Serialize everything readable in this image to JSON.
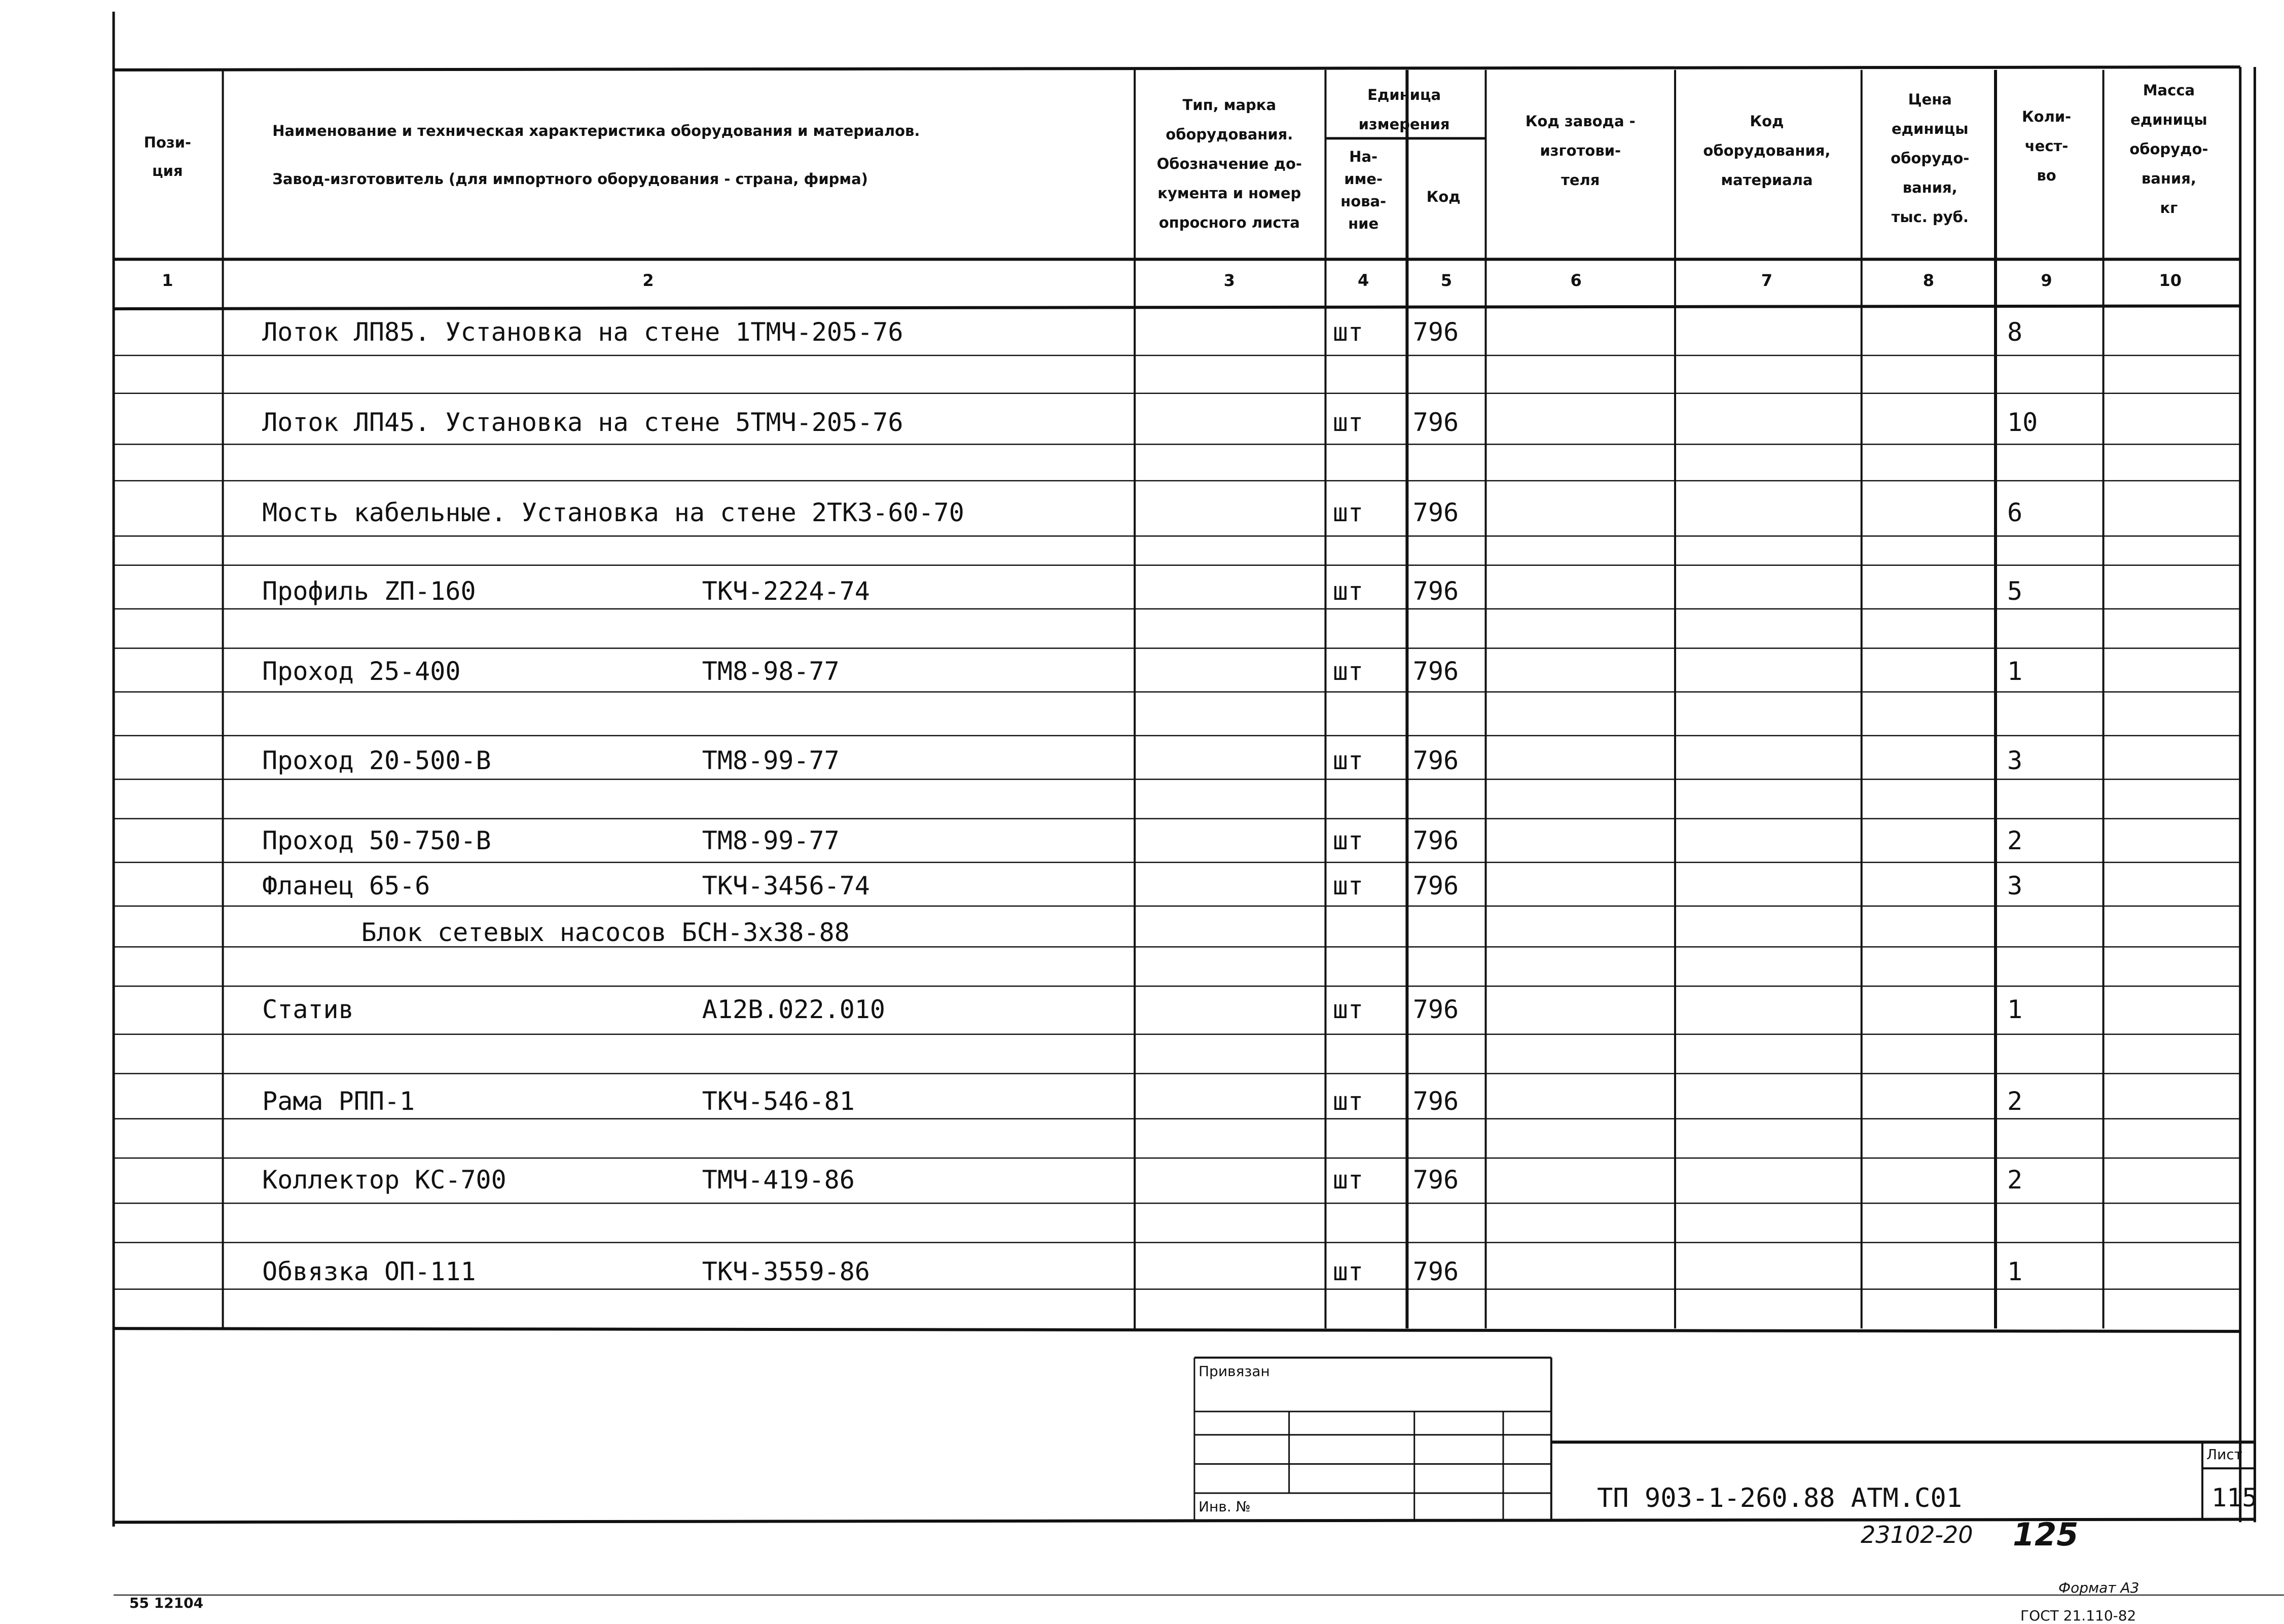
{
  "header": {
    "col1": "Пози-\nция",
    "col2_line1": "Наименование и техническая характеристика оборудования и материалов.",
    "col2_line2": "Завод-изготовитель (для импортного оборудования - страна, фирма)",
    "col3": "Тип, марка\nоборудования.\nОбозначение до-\nкумента и номер\nопросного листа",
    "unit_group": "Единица\nизмерения",
    "col4": "На-\nиме-\nнова-\nние",
    "col5": "Код",
    "col6": "Код завода -\nизготови-\nтеля",
    "col7": "Код\nоборудования,\nматериала",
    "col8": "Цена\nединицы\nоборудо-\nвания,\nтыс. руб.",
    "col9": "Коли-\nчест-\nво",
    "col10": "Масса\nединицы\nоборудо-\nвания,\nкг",
    "numbers": [
      "1",
      "2",
      "3",
      "4",
      "5",
      "6",
      "7",
      "8",
      "9",
      "10"
    ]
  },
  "rows": [
    {
      "name": "Лоток ЛП85. Установка на стене 1ТМЧ-205-76",
      "doc": "",
      "unit": "шт",
      "code": "796",
      "qty": "8"
    },
    {
      "name": "Лоток ЛП45. Установка на стене 5ТМЧ-205-76",
      "doc": "",
      "unit": "шт",
      "code": "796",
      "qty": "10"
    },
    {
      "name": "Мость кабельные. Установка на стене 2ТК3-60-70",
      "doc": "",
      "unit": "шт",
      "code": "796",
      "qty": "6"
    },
    {
      "name": "Профиль  ZП-160",
      "doc": "ТКЧ-2224-74",
      "unit": "шт",
      "code": "796",
      "qty": "5"
    },
    {
      "name": "Проход 25-400",
      "doc": "ТМ8-98-77",
      "unit": "шт",
      "code": "796",
      "qty": "1"
    },
    {
      "name": "Проход 20-500-В",
      "doc": "ТМ8-99-77",
      "unit": "шт",
      "code": "796",
      "qty": "3"
    },
    {
      "name": "Проход 50-750-В",
      "doc": "ТМ8-99-77",
      "unit": "шт",
      "code": "796",
      "qty": "2"
    },
    {
      "name": "Фланец 65-6",
      "doc": "ТКЧ-3456-74",
      "unit": "шт",
      "code": "796",
      "qty": "3"
    },
    {
      "name": "Блок сетевых насосов БСН-3х38-88",
      "doc": "",
      "unit": "",
      "code": "",
      "qty": "",
      "section": true
    },
    {
      "name": "Статив",
      "doc": "А12В.022.010",
      "unit": "шт",
      "code": "796",
      "qty": "1"
    },
    {
      "name": "Рама РПП-1",
      "doc": "ТКЧ-546-81",
      "unit": "шт",
      "code": "796",
      "qty": "2"
    },
    {
      "name": "Коллектор КС-700",
      "doc": "ТМЧ-419-86",
      "unit": "шт",
      "code": "796",
      "qty": "2"
    },
    {
      "name": "Обвязка ОП-111",
      "doc": "ТКЧ-3559-86",
      "unit": "шт",
      "code": "796",
      "qty": "1"
    }
  ],
  "stamp": {
    "privyazan": "Привязан",
    "inv_no": "Инв. №",
    "designation": "ТП 903-1-260.88 АТМ.С01",
    "sheet_label": "Лист",
    "sheet_number": "115",
    "handwritten": "23102-20",
    "page_number": "125",
    "format": "Формат А3",
    "gost": "ГОСТ 21.110-82",
    "archive": "55 12104"
  }
}
